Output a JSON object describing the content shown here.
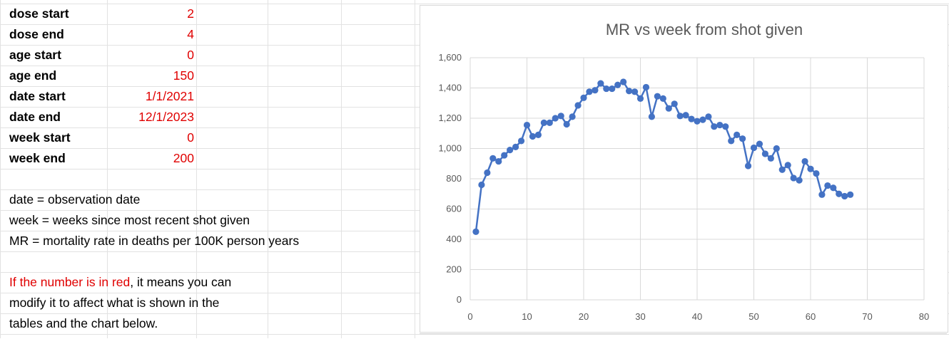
{
  "params": [
    {
      "label": "dose start",
      "value": "2"
    },
    {
      "label": "dose end",
      "value": "4"
    },
    {
      "label": "age start",
      "value": "0"
    },
    {
      "label": "age end",
      "value": "150"
    },
    {
      "label": "date start",
      "value": "1/1/2021"
    },
    {
      "label": "date end",
      "value": "12/1/2023"
    },
    {
      "label": "week start",
      "value": "0"
    },
    {
      "label": "week end",
      "value": "200"
    }
  ],
  "notes": {
    "date_def": "date = observation date",
    "week_def": "week = weeks since most recent shot given",
    "mr_def": "MR = mortality rate in deaths per 100K person years",
    "red_part": "If the number is in red",
    "red_rest": ", it means you can",
    "line2": "modify it to affect what is shown in the",
    "line3": "tables and the chart below."
  },
  "colors": {
    "editable": "#e00000",
    "series": "#4472c4",
    "gridline": "#d9d9d9"
  },
  "chart_data": {
    "type": "line",
    "title": "MR vs week from shot given",
    "xlabel": "",
    "ylabel": "",
    "xlim": [
      0,
      80
    ],
    "ylim": [
      0,
      1600
    ],
    "x_ticks": [
      0,
      10,
      20,
      30,
      40,
      50,
      60,
      70,
      80
    ],
    "y_ticks": [
      0,
      200,
      400,
      600,
      800,
      1000,
      1200,
      1400,
      1600
    ],
    "y_tick_labels": [
      "0",
      "200",
      "400",
      "600",
      "800",
      "1,000",
      "1,200",
      "1,400",
      "1,600"
    ],
    "grid": true,
    "legend": "none",
    "markers": true,
    "series": [
      {
        "x": [
          1,
          2,
          3,
          4,
          5,
          6,
          7,
          8,
          9,
          10,
          11,
          12,
          13,
          14,
          15,
          16,
          17,
          18,
          19,
          20,
          21,
          22,
          23,
          24,
          25,
          26,
          27,
          28,
          29,
          30,
          31,
          32,
          33,
          34,
          35,
          36,
          37,
          38,
          39,
          40,
          41,
          42,
          43,
          44,
          45,
          46,
          47,
          48,
          49,
          50,
          51,
          52,
          53,
          54,
          55,
          56,
          57,
          58,
          59,
          60,
          61,
          62,
          63,
          64,
          65,
          66,
          67
        ],
        "values": [
          450,
          760,
          840,
          935,
          915,
          955,
          990,
          1010,
          1050,
          1155,
          1080,
          1090,
          1170,
          1170,
          1200,
          1215,
          1160,
          1210,
          1285,
          1335,
          1375,
          1385,
          1430,
          1395,
          1395,
          1420,
          1440,
          1380,
          1375,
          1330,
          1405,
          1210,
          1345,
          1330,
          1265,
          1295,
          1215,
          1220,
          1195,
          1180,
          1190,
          1210,
          1145,
          1155,
          1145,
          1050,
          1090,
          1065,
          885,
          1005,
          1030,
          965,
          935,
          1000,
          860,
          890,
          805,
          790,
          915,
          865,
          835,
          695,
          755,
          740,
          700,
          685,
          695
        ]
      }
    ]
  }
}
